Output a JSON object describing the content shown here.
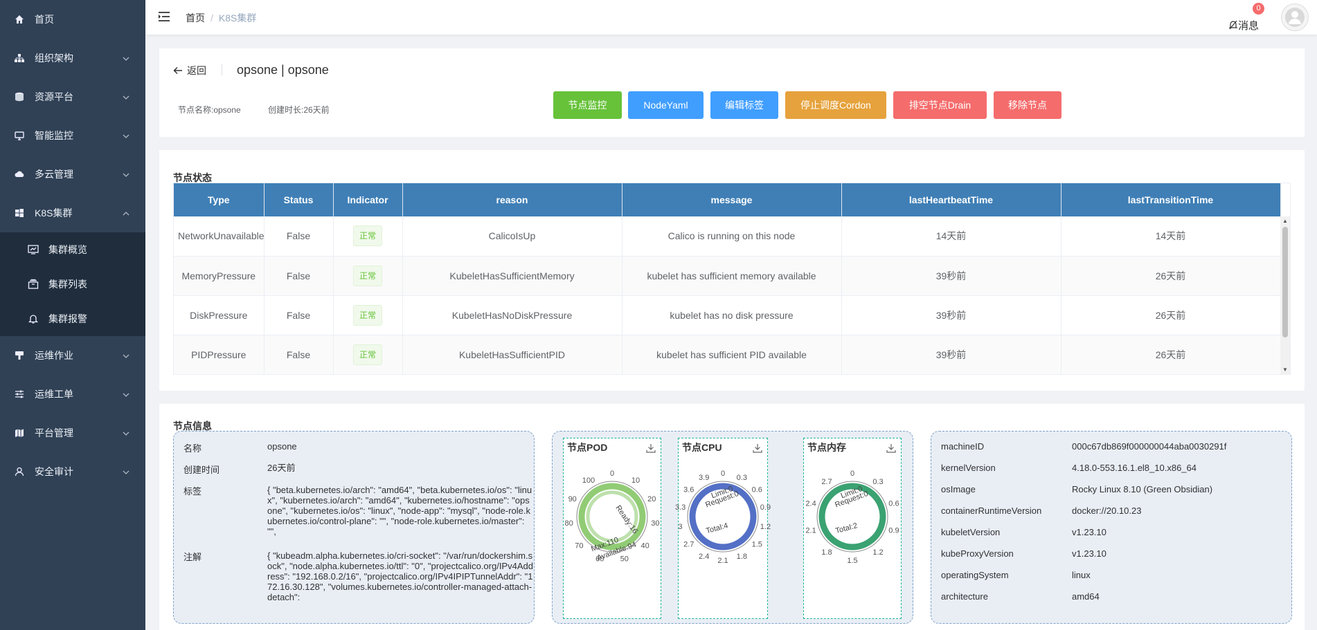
{
  "sidebar": {
    "items": [
      {
        "label": "首页"
      },
      {
        "label": "组织架构"
      },
      {
        "label": "资源平台"
      },
      {
        "label": "智能监控"
      },
      {
        "label": "多云管理"
      },
      {
        "label": "K8S集群"
      },
      {
        "label": "运维作业"
      },
      {
        "label": "运维工单"
      },
      {
        "label": "平台管理"
      },
      {
        "label": "安全审计"
      }
    ],
    "k8s_sub": [
      {
        "label": "集群概览"
      },
      {
        "label": "集群列表"
      },
      {
        "label": "集群报警"
      }
    ]
  },
  "header": {
    "breadcrumb_home": "首页",
    "breadcrumb_sep": "/",
    "breadcrumb_current": "K8S集群",
    "messages_label": "消息",
    "messages_count": "0"
  },
  "node": {
    "back_label": "返回",
    "title": "opsone | opsone",
    "name_meta": "节点名称:opsone",
    "created_meta": "创建时长:26天前"
  },
  "actions": [
    {
      "label": "节点监控",
      "color": "#67c23a"
    },
    {
      "label": "NodeYaml",
      "color": "#409eff"
    },
    {
      "label": "编辑标签",
      "color": "#409eff"
    },
    {
      "label": "停止调度Cordon",
      "color": "#e6a23c"
    },
    {
      "label": "排空节点Drain",
      "color": "#f56c6c"
    },
    {
      "label": "移除节点",
      "color": "#f56c6c"
    }
  ],
  "status": {
    "title": "节点状态",
    "columns": [
      "Type",
      "Status",
      "Indicator",
      "reason",
      "message",
      "lastHeartbeatTime",
      "lastTransitionTime"
    ],
    "rows": [
      {
        "type": "NetworkUnavailable",
        "status": "False",
        "indicator": "正常",
        "reason": "CalicoIsUp",
        "message": "Calico is running on this node",
        "heartbeat": "14天前",
        "transition": "14天前"
      },
      {
        "type": "MemoryPressure",
        "status": "False",
        "indicator": "正常",
        "reason": "KubeletHasSufficientMemory",
        "message": "kubelet has sufficient memory available",
        "heartbeat": "39秒前",
        "transition": "26天前"
      },
      {
        "type": "DiskPressure",
        "status": "False",
        "indicator": "正常",
        "reason": "KubeletHasNoDiskPressure",
        "message": "kubelet has no disk pressure",
        "heartbeat": "39秒前",
        "transition": "26天前"
      },
      {
        "type": "PIDPressure",
        "status": "False",
        "indicator": "正常",
        "reason": "KubeletHasSufficientPID",
        "message": "kubelet has sufficient PID available",
        "heartbeat": "39秒前",
        "transition": "26天前"
      }
    ]
  },
  "info": {
    "title": "节点信息",
    "basic": [
      {
        "k": "名称",
        "v": "opsone"
      },
      {
        "k": "创建时间",
        "v": "26天前"
      },
      {
        "k": "标签",
        "v": "{ \"beta.kubernetes.io/arch\": \"amd64\", \"beta.kubernetes.io/os\": \"linux\", \"kubernetes.io/arch\": \"amd64\", \"kubernetes.io/hostname\": \"opsone\", \"kubernetes.io/os\": \"linux\", \"node-app\": \"mysql\", \"node-role.kubernetes.io/control-plane\": \"\", \"node-role.kubernetes.io/master\": \"\","
      },
      {
        "k": "注解",
        "v": "{ \"kubeadm.alpha.kubernetes.io/cri-socket\": \"/var/run/dockershim.sock\", \"node.alpha.kubernetes.io/ttl\": \"0\", \"projectcalico.org/IPv4Address\": \"192.168.0.2/16\", \"projectcalico.org/IPv4IPIPTunnelAddr\": \"172.16.30.128\", \"volumes.kubernetes.io/controller-managed-attach-detach\":"
      }
    ],
    "system": [
      {
        "k": "machineID",
        "v": "000c67db869f000000044aba0030291f"
      },
      {
        "k": "kernelVersion",
        "v": "4.18.0-553.16.1.el8_10.x86_64"
      },
      {
        "k": "osImage",
        "v": "Rocky Linux 8.10 (Green Obsidian)"
      },
      {
        "k": "containerRuntimeVersion",
        "v": "docker://20.10.23"
      },
      {
        "k": "kubeletVersion",
        "v": "v1.23.10"
      },
      {
        "k": "kubeProxyVersion",
        "v": "v1.23.10"
      },
      {
        "k": "operatingSystem",
        "v": "linux"
      },
      {
        "k": "architecture",
        "v": "amd64"
      }
    ]
  },
  "chart_data": [
    {
      "type": "gauge",
      "title": "节点POD",
      "max": 110,
      "ticks": [
        0,
        10,
        20,
        30,
        40,
        50,
        60,
        70,
        80,
        90,
        100
      ],
      "labels": [
        "Ready:16",
        "Max:110",
        "Available:94"
      ],
      "value": 16,
      "color": "#91cc75"
    },
    {
      "type": "gauge",
      "title": "节点CPU",
      "max": 3.9,
      "ticks": [
        "0",
        "0.3",
        "0.6",
        "0.9",
        "1.2",
        "1.5",
        "1.8",
        "2.1",
        "2.4",
        "2.7",
        "3",
        "3.3",
        "3.6",
        "3.9"
      ],
      "labels": [
        "Limit:0",
        "Request:0",
        "Total:4"
      ],
      "value": 0,
      "color": "#5470c6"
    },
    {
      "type": "gauge",
      "title": "节点内存",
      "max": 2.7,
      "ticks": [
        "0",
        "0.3",
        "0.6",
        "0.9",
        "1.2",
        "1.5",
        "1.8",
        "2.1",
        "2.4",
        "2.7"
      ],
      "labels": [
        "Limit:0",
        "Request:0",
        "Total:2"
      ],
      "value": 0,
      "color": "#3ba272"
    }
  ]
}
